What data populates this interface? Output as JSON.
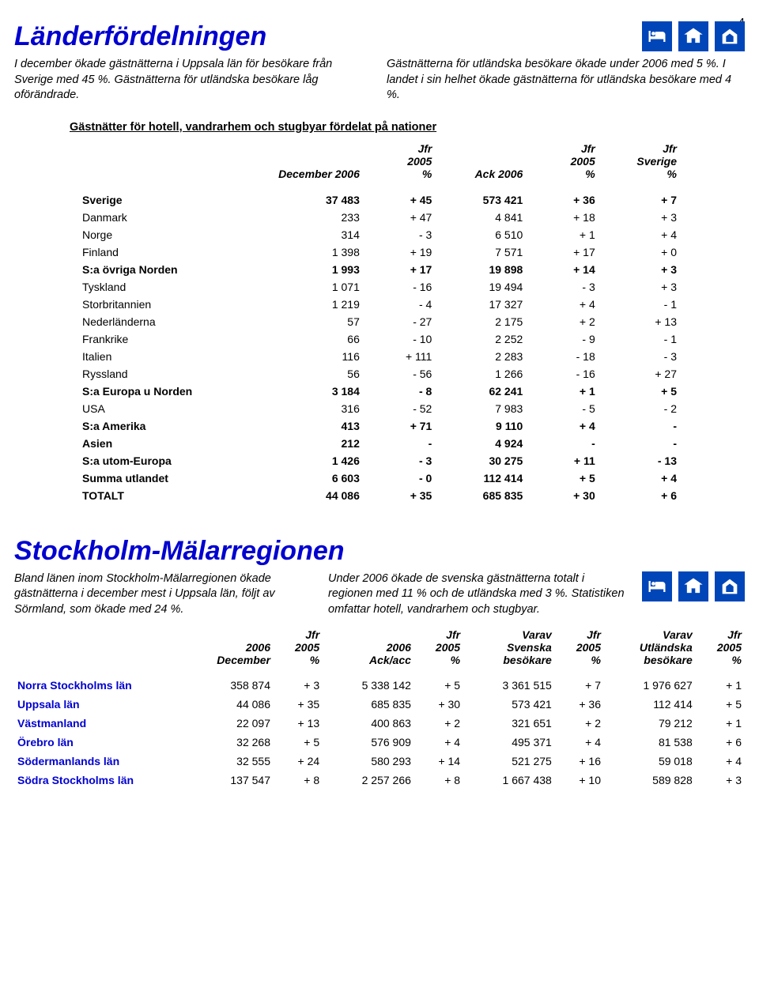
{
  "page_number": "4",
  "section1": {
    "title": "Länderfördelningen",
    "intro_left": "I december ökade gästnätterna i Uppsala län för besökare från Sverige med 45 %. Gästnätterna för utländska besökare låg oförändrade.",
    "intro_right": "Gästnätterna för utländska besökare ökade under 2006 med 5 %. I landet i sin helhet ökade gästnätterna för utländska besökare med 4 %.",
    "subtitle": "Gästnätter för hotell, vandrarhem och stugbyar fördelat på nationer",
    "columns": {
      "c1": "December 2006",
      "c2a": "Jfr",
      "c2b": "2005",
      "c2c": "%",
      "c3": "Ack 2006",
      "c4a": "Jfr",
      "c4b": "2005",
      "c4c": "%",
      "c5a": "Jfr",
      "c5b": "Sverige",
      "c5c": "%"
    },
    "rows": [
      {
        "label": "Sverige",
        "bold": true,
        "d": "37 483",
        "j1": "+ 45",
        "a": "573 421",
        "j2": "+ 36",
        "j3": "+ 7"
      },
      {
        "label": "Danmark",
        "d": "233",
        "j1": "+ 47",
        "a": "4 841",
        "j2": "+ 18",
        "j3": "+ 3"
      },
      {
        "label": "Norge",
        "d": "314",
        "j1": "- 3",
        "a": "6 510",
        "j2": "+ 1",
        "j3": "+ 4"
      },
      {
        "label": "Finland",
        "d": "1 398",
        "j1": "+ 19",
        "a": "7 571",
        "j2": "+ 17",
        "j3": "+ 0"
      },
      {
        "label": "S:a övriga Norden",
        "bold": true,
        "d": "1 993",
        "j1": "+ 17",
        "a": "19 898",
        "j2": "+ 14",
        "j3": "+ 3"
      },
      {
        "label": "Tyskland",
        "d": "1 071",
        "j1": "- 16",
        "a": "19 494",
        "j2": "- 3",
        "j3": "+ 3"
      },
      {
        "label": "Storbritannien",
        "d": "1 219",
        "j1": "- 4",
        "a": "17 327",
        "j2": "+ 4",
        "j3": "- 1"
      },
      {
        "label": "Nederländerna",
        "d": "57",
        "j1": "- 27",
        "a": "2 175",
        "j2": "+ 2",
        "j3": "+ 13"
      },
      {
        "label": "Frankrike",
        "d": "66",
        "j1": "- 10",
        "a": "2 252",
        "j2": "- 9",
        "j3": "- 1"
      },
      {
        "label": "Italien",
        "d": "116",
        "j1": "+ 111",
        "a": "2 283",
        "j2": "- 18",
        "j3": "- 3"
      },
      {
        "label": "Ryssland",
        "d": "56",
        "j1": "- 56",
        "a": "1 266",
        "j2": "- 16",
        "j3": "+ 27"
      },
      {
        "label": "S:a Europa u Norden",
        "bold": true,
        "d": "3 184",
        "j1": "- 8",
        "a": "62 241",
        "j2": "+ 1",
        "j3": "+ 5"
      },
      {
        "label": "USA",
        "d": "316",
        "j1": "- 52",
        "a": "7 983",
        "j2": "- 5",
        "j3": "- 2"
      },
      {
        "label": "S:a Amerika",
        "bold": true,
        "d": "413",
        "j1": "+ 71",
        "a": "9 110",
        "j2": "+ 4",
        "j3": "-"
      },
      {
        "label": "Asien",
        "bold": true,
        "d": "212",
        "j1": "-",
        "a": "4 924",
        "j2": "-",
        "j3": "-"
      },
      {
        "label": "S:a utom-Europa",
        "bold": true,
        "d": "1 426",
        "j1": "- 3",
        "a": "30 275",
        "j2": "+ 11",
        "j3": "- 13"
      },
      {
        "label": "Summa utlandet",
        "bold": true,
        "d": "6 603",
        "j1": "- 0",
        "a": "112 414",
        "j2": "+ 5",
        "j3": "+ 4"
      },
      {
        "label": "TOTALT",
        "bold": true,
        "d": "44 086",
        "j1": "+ 35",
        "a": "685 835",
        "j2": "+ 30",
        "j3": "+ 6"
      }
    ]
  },
  "section2": {
    "title": "Stockholm-Mälarregionen",
    "intro_left": "Bland länen inom Stockholm-Mälarregionen ökade gästnätterna i december mest i Uppsala län, följt av Sörmland, som ökade med 24 %.",
    "intro_right": "Under 2006 ökade de svenska gästnätterna totalt i regionen med 11 % och de utländska med 3 %. Statistiken omfattar hotell, vandrarhem och stugbyar.",
    "columns": {
      "c1a": "2006",
      "c1b": "December",
      "c2a": "Jfr",
      "c2b": "2005",
      "c2c": "%",
      "c3a": "2006",
      "c3b": "Ack/acc",
      "c4a": "Jfr",
      "c4b": "2005",
      "c4c": "%",
      "c5a": "Varav",
      "c5b": "Svenska",
      "c5c": "besökare",
      "c6a": "Jfr",
      "c6b": "2005",
      "c6c": "%",
      "c7a": "Varav",
      "c7b": "Utländska",
      "c7c": "besökare",
      "c8a": "Jfr",
      "c8b": "2005",
      "c8c": "%"
    },
    "rows": [
      {
        "label": "Norra Stockholms län",
        "d": "358 874",
        "j1": "+ 3",
        "a": "5 338 142",
        "j2": "+ 5",
        "sv": "3 361 515",
        "j3": "+ 7",
        "ut": "1 976 627",
        "j4": "+ 1"
      },
      {
        "label": "Uppsala län",
        "d": "44 086",
        "j1": "+ 35",
        "a": "685 835",
        "j2": "+ 30",
        "sv": "573 421",
        "j3": "+ 36",
        "ut": "112 414",
        "j4": "+ 5"
      },
      {
        "label": "Västmanland",
        "d": "22 097",
        "j1": "+ 13",
        "a": "400 863",
        "j2": "+ 2",
        "sv": "321 651",
        "j3": "+ 2",
        "ut": "79 212",
        "j4": "+ 1"
      },
      {
        "label": "Örebro län",
        "d": "32 268",
        "j1": "+ 5",
        "a": "576 909",
        "j2": "+ 4",
        "sv": "495 371",
        "j3": "+ 4",
        "ut": "81 538",
        "j4": "+ 6"
      },
      {
        "label": "Södermanlands län",
        "d": "32 555",
        "j1": "+ 24",
        "a": "580 293",
        "j2": "+ 14",
        "sv": "521 275",
        "j3": "+ 16",
        "ut": "59 018",
        "j4": "+ 4"
      },
      {
        "label": "Södra Stockholms län",
        "d": "137 547",
        "j1": "+ 8",
        "a": "2 257 266",
        "j2": "+ 8",
        "sv": "1 667 438",
        "j3": "+ 10",
        "ut": "589 828",
        "j4": "+ 3"
      }
    ]
  }
}
